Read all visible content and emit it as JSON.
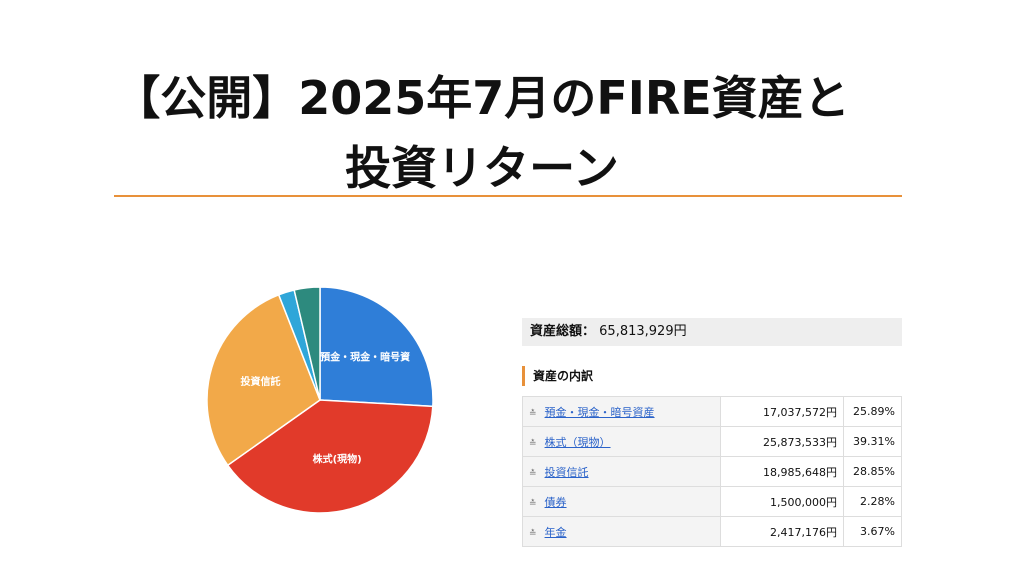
{
  "title_line1": "【公開】2025年7月のFIRE資産と",
  "title_line2": "投資リターン",
  "summary": {
    "label": "資産総額：",
    "value": "65,813,929円"
  },
  "breakdown_heading": "資産の内訳",
  "colors": {
    "accent": "#e8913a",
    "link": "#2a62c9"
  },
  "rows": [
    {
      "name": "預金・現金・暗号資産",
      "amount": "17,037,572円",
      "pct": "25.89%"
    },
    {
      "name": "株式（現物）",
      "amount": "25,873,533円",
      "pct": "39.31%"
    },
    {
      "name": "投資信託",
      "amount": "18,985,648円",
      "pct": "28.85%"
    },
    {
      "name": "債券",
      "amount": "1,500,000円",
      "pct": "2.28%"
    },
    {
      "name": "年金",
      "amount": "2,417,176円",
      "pct": "3.67%"
    }
  ],
  "chart_data": {
    "type": "pie",
    "slices": [
      {
        "label": "預金・現金・暗号資",
        "value": 25.89,
        "color": "#2f7ed8"
      },
      {
        "label": "株式(現物)",
        "value": 39.31,
        "color": "#e13a2a"
      },
      {
        "label": "投資信託",
        "value": 28.85,
        "color": "#f2a949"
      },
      {
        "label": "",
        "value": 2.28,
        "color": "#2fa6d9"
      },
      {
        "label": "",
        "value": 3.67,
        "color": "#2d8a7e"
      }
    ]
  }
}
